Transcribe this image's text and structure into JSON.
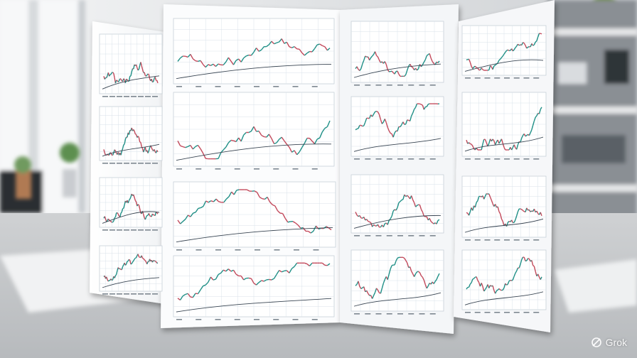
{
  "scene": {
    "description_colors": {
      "paper": "#f8f9fa",
      "grid": "#d9e2ea",
      "teal_line": "#1f8f86",
      "red_line": "#c2485a",
      "dark_line": "#394552"
    }
  },
  "watermark": {
    "label": "Grok",
    "icon": "grok-logo-icon"
  }
}
